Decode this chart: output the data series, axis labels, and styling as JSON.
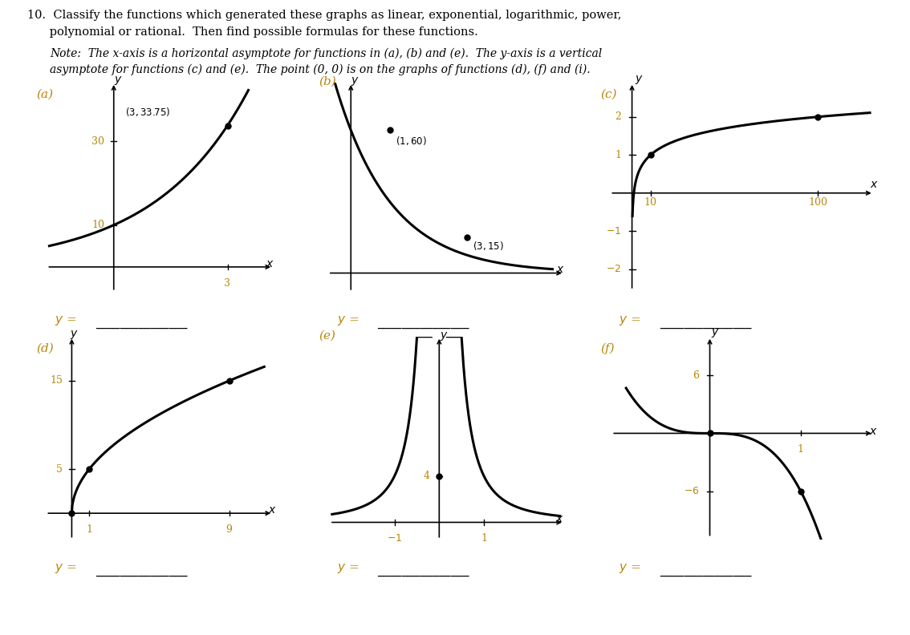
{
  "background_color": "#ffffff",
  "title_line1": "10.  Classify the functions which generated these graphs as linear, exponential, logarithmic, power,",
  "title_line2": "      polynomial or rational.  Then find possible formulas for these functions.",
  "note_line1": "Note:  The x-axis is a horizontal asymptote for functions in (a), (b) and (e).  The y-axis is a vertical",
  "note_line2": "asymptote for functions (c) and (e).  The point (0, 0) is on the graphs of functions (d), (f) and (i).",
  "orange": "#B8860B",
  "panel_letters": [
    "(a)",
    "(b)",
    "(c)",
    "(d)",
    "(e)",
    "(f)"
  ],
  "tick_color": "#B8860B"
}
